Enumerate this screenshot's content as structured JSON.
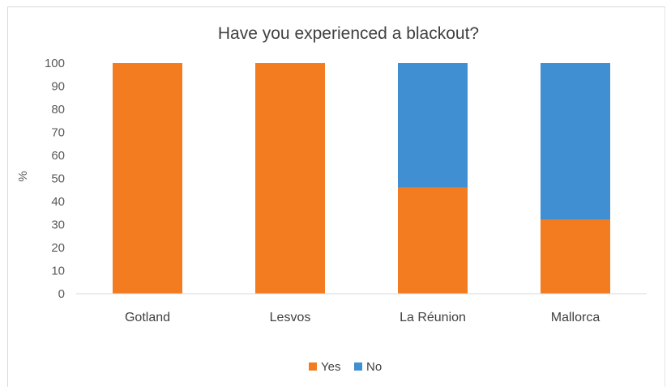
{
  "chart_data": {
    "type": "bar",
    "stacked": true,
    "title": "Have you experienced a blackout?",
    "ylabel": "%",
    "xlabel": "",
    "ylim": [
      0,
      100
    ],
    "yticks": [
      0,
      10,
      20,
      30,
      40,
      50,
      60,
      70,
      80,
      90,
      100
    ],
    "categories": [
      "Gotland",
      "Lesvos",
      "La Réunion",
      "Mallorca"
    ],
    "series": [
      {
        "name": "Yes",
        "color": "#f47c20",
        "values": [
          100,
          100,
          46,
          32
        ]
      },
      {
        "name": "No",
        "color": "#3f8fd2",
        "values": [
          0,
          0,
          54,
          68
        ]
      }
    ],
    "legend_position": "bottom",
    "grid": false
  }
}
